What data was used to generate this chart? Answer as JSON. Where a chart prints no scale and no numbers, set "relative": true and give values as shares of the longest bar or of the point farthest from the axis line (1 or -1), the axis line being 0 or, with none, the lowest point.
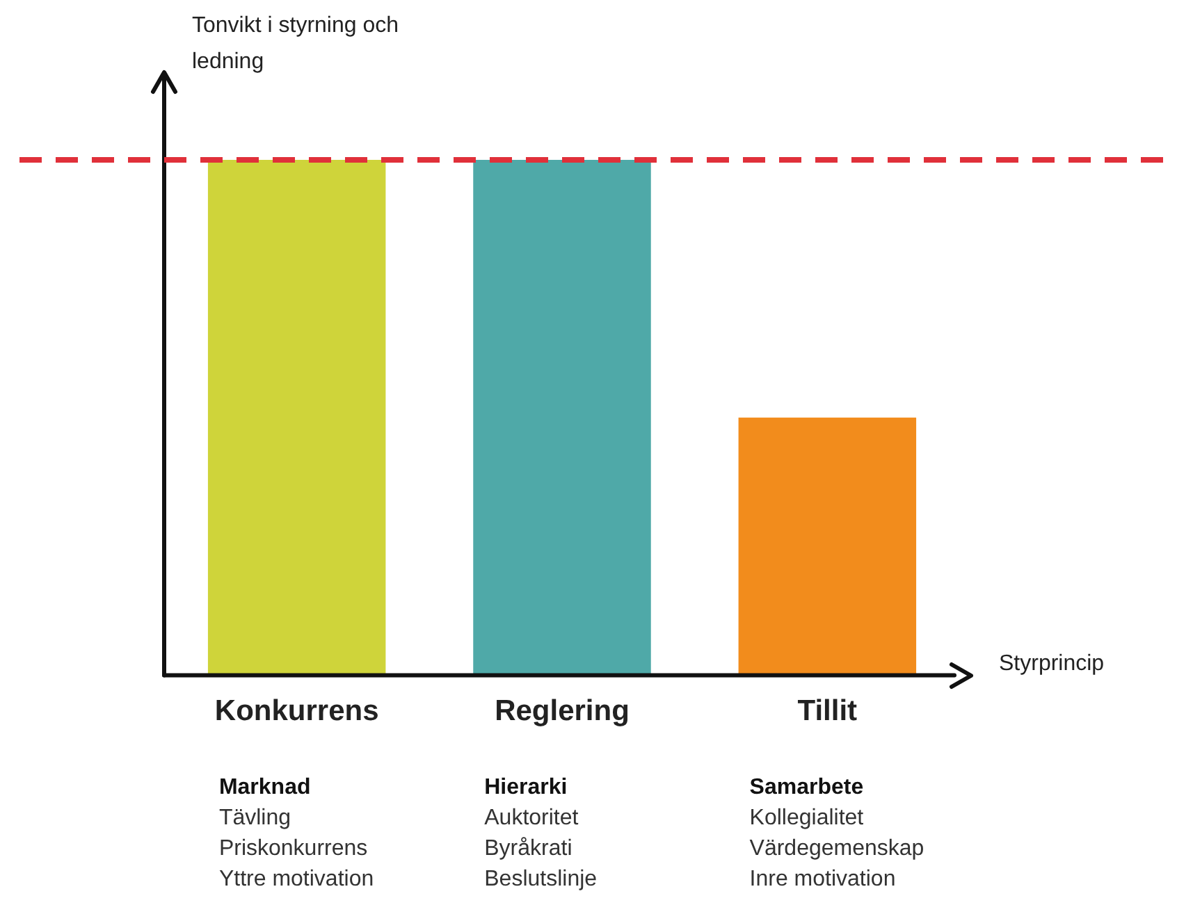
{
  "chart_data": {
    "type": "bar",
    "relative": true,
    "xlabel": "Styrprincip",
    "ylabel": "Tonvikt i styrning och ledning",
    "categories": [
      "Konkurrens",
      "Reglering",
      "Tillit"
    ],
    "values": [
      1,
      1,
      0.5
    ],
    "colors": [
      "#cfd43a",
      "#4fa9a8",
      "#f28c1c"
    ],
    "ref_lines": [
      {
        "axis": "y",
        "value": 1,
        "color": "#e0303a",
        "line_style": "dashed"
      }
    ],
    "annotations": [
      "Marknad\nTävling\nPriskonkurrens\nYttre motivation",
      "Hierarki\nAuktoritet\nByråkrati\nBeslutslinje",
      "Samarbete\nKollegialitet\nVärdegemenskap\nInre motivation"
    ],
    "grid": false,
    "legend": false
  }
}
